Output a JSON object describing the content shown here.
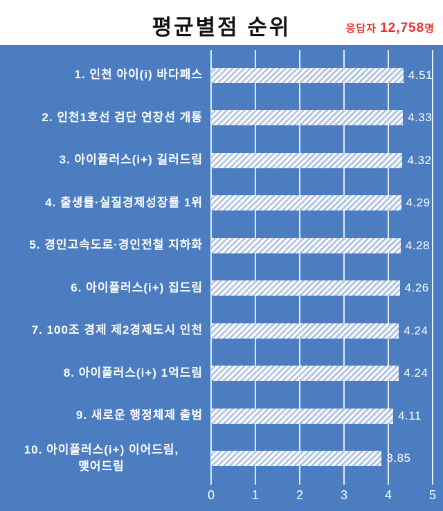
{
  "header": {
    "title": "평균별점 순위",
    "respondents_prefix": "응답자 ",
    "respondents_count": "12,758",
    "respondents_suffix": "명"
  },
  "chart_data": {
    "type": "bar",
    "orientation": "horizontal",
    "title": "평균별점 순위",
    "xlim": [
      0,
      5
    ],
    "x_ticks": [
      "0",
      "1",
      "2",
      "3",
      "4",
      "5"
    ],
    "grid": true,
    "items": [
      {
        "label": "1. 인천 아이(i) 바다패스",
        "value": 4.51
      },
      {
        "label": "2. 인천1호선 검단 연장선 개통",
        "value": 4.33
      },
      {
        "label": "3. 아이플러스(i+) 길러드림",
        "value": 4.32
      },
      {
        "label": "4. 출생률·실질경제성장률 1위",
        "value": 4.29
      },
      {
        "label": "5. 경인고속도로·경인전철 지하화",
        "value": 4.28
      },
      {
        "label": "6. 아이플러스(i+) 집드림",
        "value": 4.26
      },
      {
        "label": "7. 100조 경제 제2경제도시 인천",
        "value": 4.24
      },
      {
        "label": "8. 아이플러스(i+) 1억드림",
        "value": 4.24
      },
      {
        "label": "9. 새로운 행정체제 출범",
        "value": 4.11
      },
      {
        "label": "10. 아이플러스(i+) 이어드림,\n맺어드림",
        "value": 3.85
      }
    ],
    "colors": {
      "background": "#4b7dc0",
      "bar_hatch": "#ffffff",
      "text": "#ffffff",
      "respondents_text": "#e8302a"
    }
  }
}
